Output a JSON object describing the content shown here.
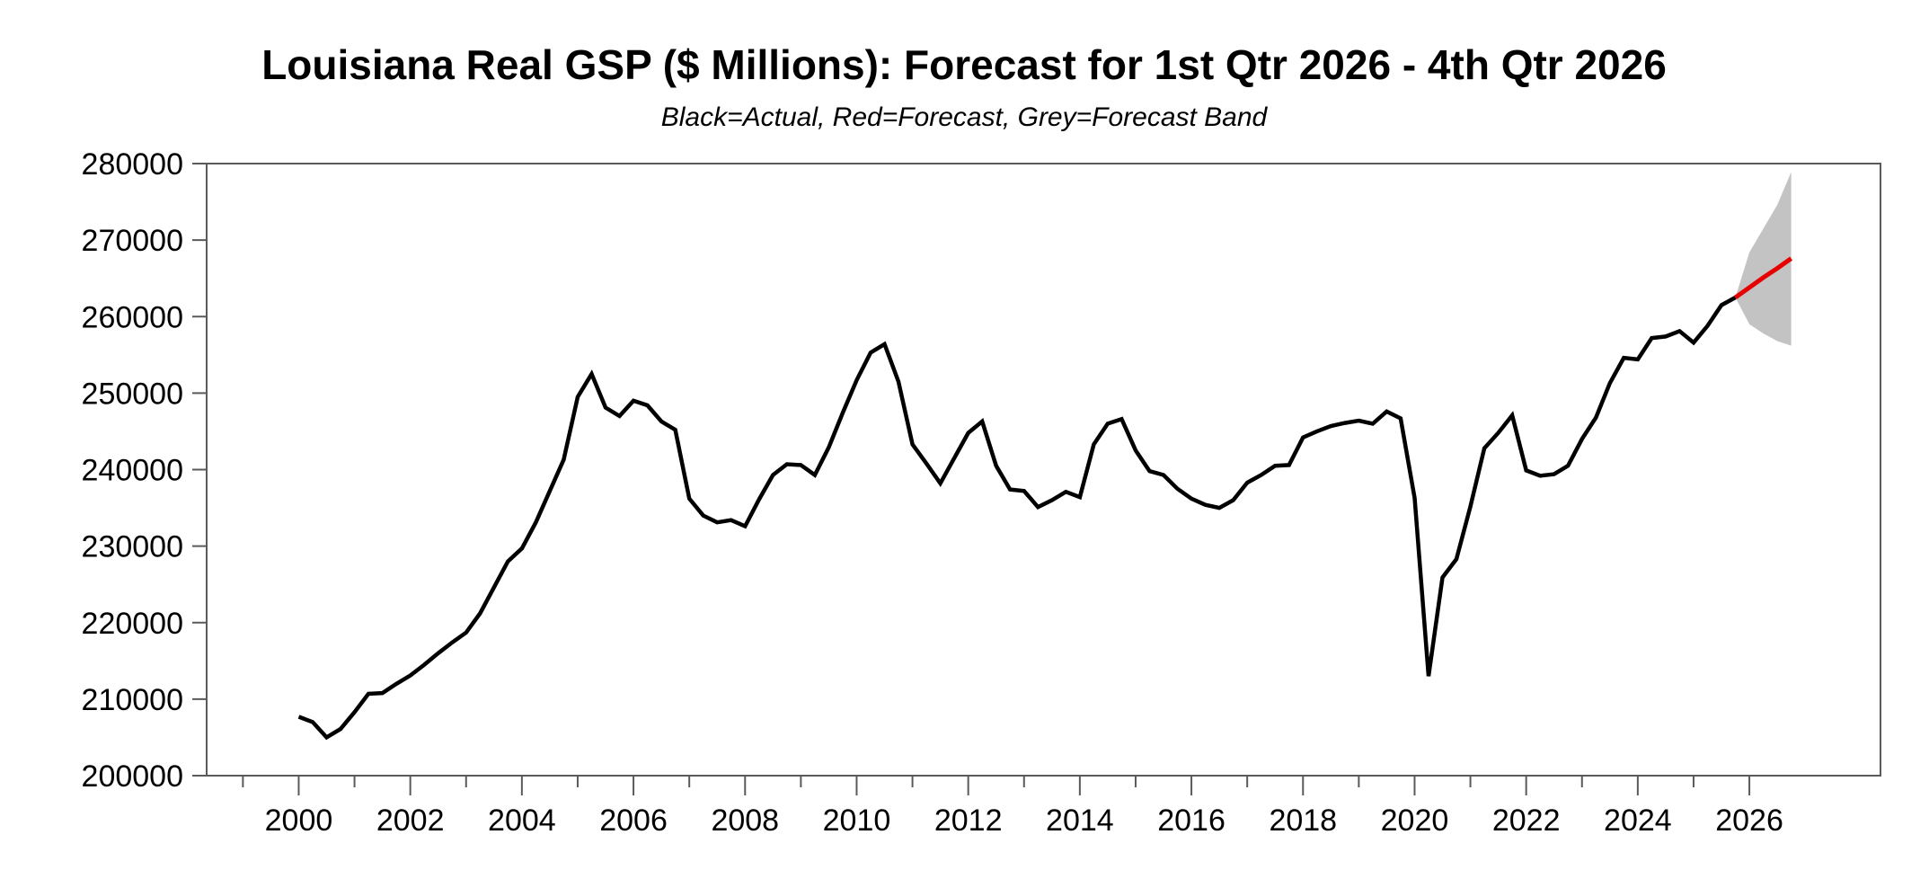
{
  "title": "Louisiana Real GSP ($ Millions): Forecast for 1st Qtr 2026 - 4th Qtr 2026",
  "subtitle": "Black=Actual, Red=Forecast, Grey=Forecast Band",
  "chart_data": {
    "type": "line",
    "title": "Louisiana Real GSP ($ Millions): Forecast for 1st Qtr 2026 - 4th Qtr 2026",
    "subtitle": "Black=Actual, Red=Forecast, Grey=Forecast Band",
    "xlabel": "",
    "ylabel": "",
    "grid": "off",
    "legend_position": "none",
    "x_domain": [
      1998.35,
      2028.35
    ],
    "y_domain": [
      200000,
      280000
    ],
    "y_ticks": [
      200000,
      210000,
      220000,
      230000,
      240000,
      250000,
      260000,
      270000,
      280000
    ],
    "x_major_ticks": [
      2000,
      2002,
      2004,
      2006,
      2008,
      2010,
      2012,
      2014,
      2016,
      2018,
      2020,
      2022,
      2024,
      2026
    ],
    "x_minor_ticks": [
      1999,
      2001,
      2003,
      2005,
      2007,
      2009,
      2011,
      2013,
      2015,
      2017,
      2019,
      2021,
      2023,
      2025
    ],
    "quarters_per_year": 4,
    "series": [
      {
        "name": "Actual",
        "color": "#000000",
        "start": "2000Q1",
        "end": "2025Q4",
        "t_start": 2000.0,
        "t_step": 0.25,
        "values": [
          207700,
          207000,
          205000,
          206100,
          208300,
          210700,
          210800,
          212000,
          213100,
          214500,
          216000,
          217400,
          218700,
          221200,
          224600,
          228000,
          229700,
          233100,
          237200,
          241300,
          249500,
          252500,
          248100,
          247000,
          249000,
          248400,
          246300,
          245200,
          236200,
          234000,
          233100,
          233400,
          232600,
          236100,
          239300,
          240700,
          240600,
          239300,
          242900,
          247400,
          251700,
          255300,
          256400,
          251500,
          243300,
          240800,
          238200,
          241500,
          244800,
          246300,
          240500,
          237400,
          237200,
          235100,
          236000,
          237100,
          236400,
          243300,
          246000,
          246600,
          242500,
          239800,
          239300,
          237500,
          236200,
          235400,
          235000,
          236000,
          238300,
          239300,
          240500,
          240600,
          244200,
          245000,
          245700,
          246100,
          246400,
          246000,
          247600,
          246700,
          236300,
          213000,
          225900,
          228300,
          235200,
          242800,
          244800,
          247100,
          239900,
          239200,
          239400,
          240500,
          244000,
          246800,
          251300,
          254600,
          254400,
          257200,
          257400,
          258100,
          256600,
          258800,
          261500,
          262500
        ]
      },
      {
        "name": "Forecast",
        "color": "#e60000",
        "start": "2026Q1",
        "end": "2026Q4",
        "t_start": 2026.0,
        "t_step": 0.25,
        "junction": {
          "t": 2025.75,
          "value": 262500
        },
        "values": [
          263800,
          265100,
          266300,
          267600
        ]
      }
    ],
    "band": {
      "name": "Forecast Band",
      "color": "#c3c3c3",
      "t_start": 2026.0,
      "t_step": 0.25,
      "junction": {
        "t": 2025.75,
        "value": 262500
      },
      "upper": [
        268400,
        271500,
        274600,
        278900
      ],
      "lower": [
        259000,
        257800,
        256800,
        256200
      ]
    },
    "axis_color": "#5a5a5a",
    "text_color": "#000000"
  }
}
